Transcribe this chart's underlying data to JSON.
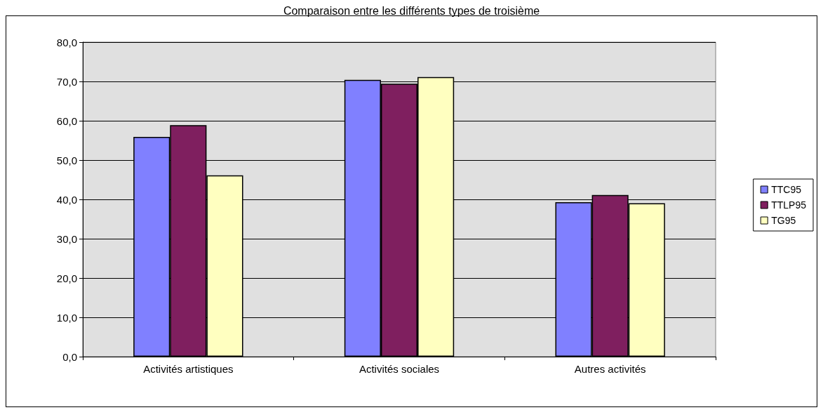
{
  "chart_data": {
    "type": "bar",
    "title": "Comparaison entre les différents types de troisième",
    "categories": [
      "Activités artistiques",
      "Activités sociales",
      "Autres activités"
    ],
    "series": [
      {
        "name": "TTC95",
        "color": "#8080ff",
        "values": [
          55.9,
          70.4,
          39.3
        ]
      },
      {
        "name": "TTLP95",
        "color": "#7f1f5f",
        "values": [
          58.9,
          69.4,
          41.1
        ]
      },
      {
        "name": "TG95",
        "color": "#ffffc0",
        "values": [
          46.1,
          71.1,
          39.0
        ]
      }
    ],
    "ylim": [
      0,
      80
    ],
    "yticks": [
      {
        "value": 0,
        "label": "0,0"
      },
      {
        "value": 10,
        "label": "10,0"
      },
      {
        "value": 20,
        "label": "20,0"
      },
      {
        "value": 30,
        "label": "30,0"
      },
      {
        "value": 40,
        "label": "40,0"
      },
      {
        "value": 50,
        "label": "50,0"
      },
      {
        "value": 60,
        "label": "60,0"
      },
      {
        "value": 70,
        "label": "70,0"
      },
      {
        "value": 80,
        "label": "80,0"
      }
    ],
    "grid": "y",
    "legend": "right"
  }
}
